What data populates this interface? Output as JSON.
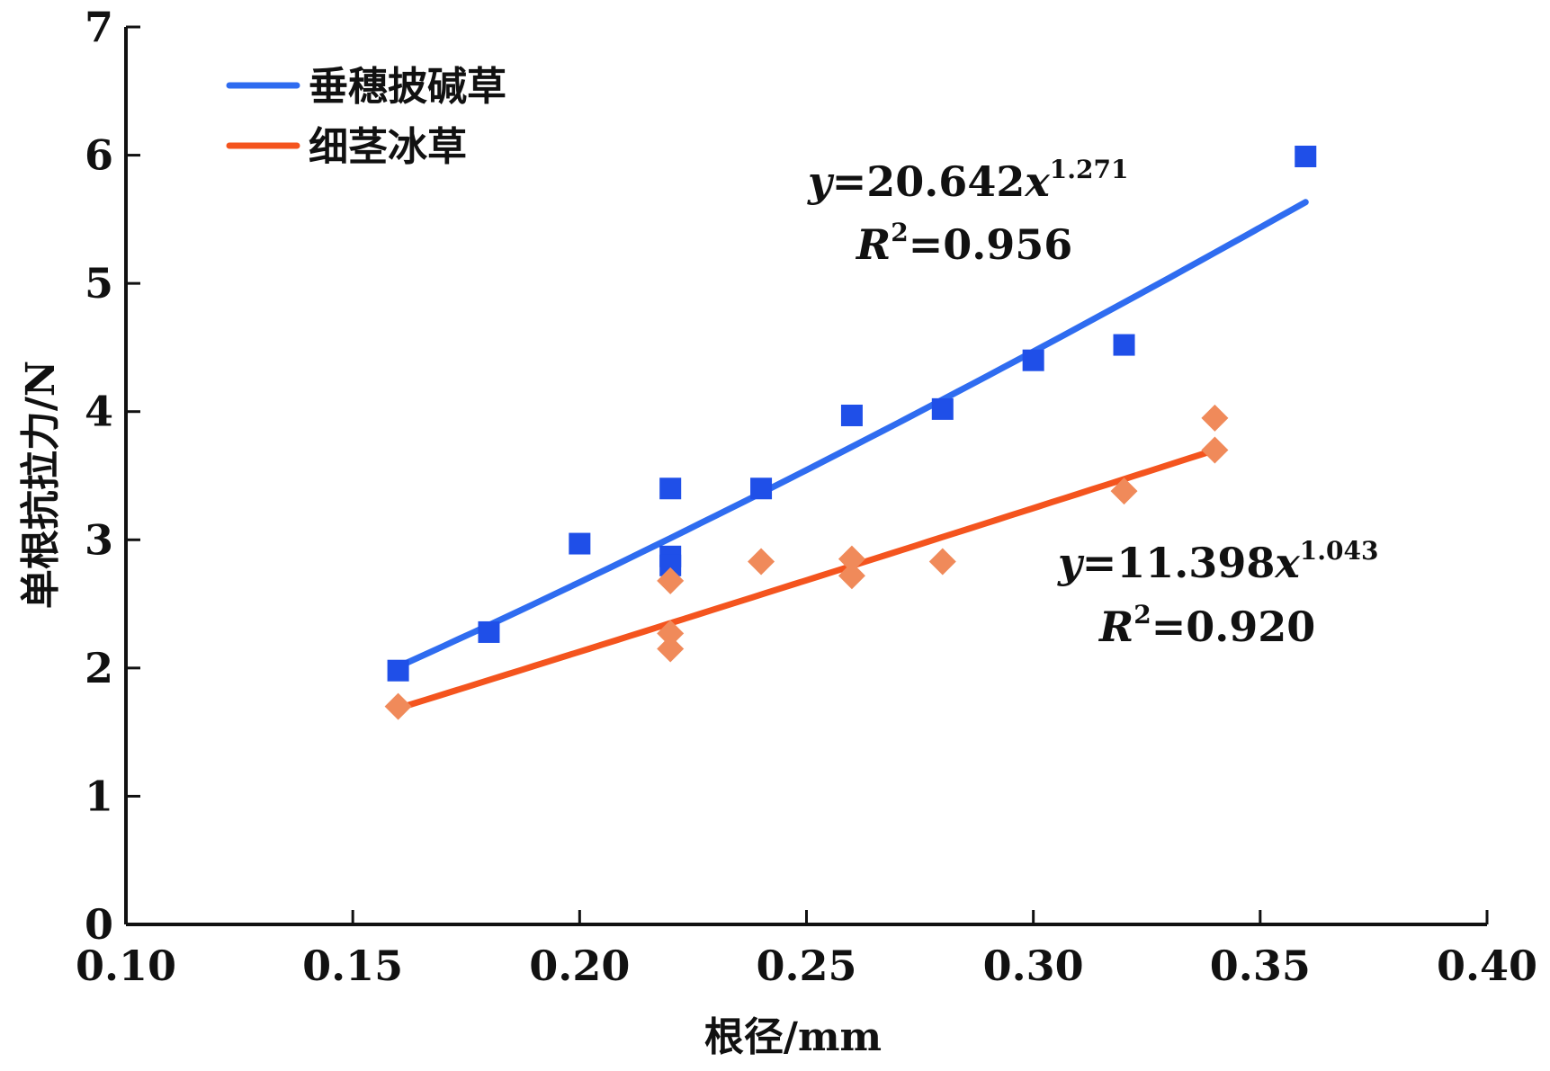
{
  "chart_data": {
    "type": "scatter",
    "title": "",
    "xlabel": "根径/mm",
    "ylabel": "单根抗拉力/N",
    "xlim": [
      0.1,
      0.4
    ],
    "ylim": [
      0,
      7
    ],
    "x_ticks": [
      "0.10",
      "0.15",
      "0.20",
      "0.25",
      "0.30",
      "0.35",
      "0.40"
    ],
    "y_ticks": [
      "0",
      "1",
      "2",
      "3",
      "4",
      "5",
      "6",
      "7"
    ],
    "grid": false,
    "legend_position": "top-left",
    "series": [
      {
        "name": "垂穗披碱草",
        "color": "#1f4fe8",
        "line_color": "#2f6cf0",
        "marker": "square",
        "points": [
          {
            "x": 0.16,
            "y": 1.98
          },
          {
            "x": 0.18,
            "y": 2.28
          },
          {
            "x": 0.2,
            "y": 2.97
          },
          {
            "x": 0.22,
            "y": 3.4
          },
          {
            "x": 0.22,
            "y": 2.87
          },
          {
            "x": 0.22,
            "y": 2.8
          },
          {
            "x": 0.24,
            "y": 3.4
          },
          {
            "x": 0.26,
            "y": 3.97
          },
          {
            "x": 0.28,
            "y": 4.02
          },
          {
            "x": 0.3,
            "y": 4.4
          },
          {
            "x": 0.32,
            "y": 4.52
          },
          {
            "x": 0.36,
            "y": 5.99
          }
        ],
        "fit": {
          "coef": 20.642,
          "exp": 1.271,
          "x_range": [
            0.16,
            0.36
          ],
          "equation_prefix": "y",
          "equation_body": "=20.642",
          "equation_x": "x",
          "equation_exp": "1.271",
          "r2_prefix": "R",
          "r2_sup": "2",
          "r2_value": "=0.956"
        }
      },
      {
        "name": "细茎冰草",
        "color": "#f08a5a",
        "line_color": "#f4541e",
        "marker": "diamond",
        "points": [
          {
            "x": 0.16,
            "y": 1.7
          },
          {
            "x": 0.22,
            "y": 2.68
          },
          {
            "x": 0.22,
            "y": 2.27
          },
          {
            "x": 0.22,
            "y": 2.15
          },
          {
            "x": 0.24,
            "y": 2.83
          },
          {
            "x": 0.26,
            "y": 2.85
          },
          {
            "x": 0.26,
            "y": 2.72
          },
          {
            "x": 0.28,
            "y": 2.83
          },
          {
            "x": 0.32,
            "y": 3.38
          },
          {
            "x": 0.34,
            "y": 3.95
          },
          {
            "x": 0.34,
            "y": 3.7
          }
        ],
        "fit": {
          "coef": 11.398,
          "exp": 1.043,
          "x_range": [
            0.16,
            0.34
          ],
          "equation_prefix": "y",
          "equation_body": "=11.398",
          "equation_x": "x",
          "equation_exp": "1.043",
          "r2_prefix": "R",
          "r2_sup": "2",
          "r2_value": "=0.920"
        }
      }
    ]
  }
}
